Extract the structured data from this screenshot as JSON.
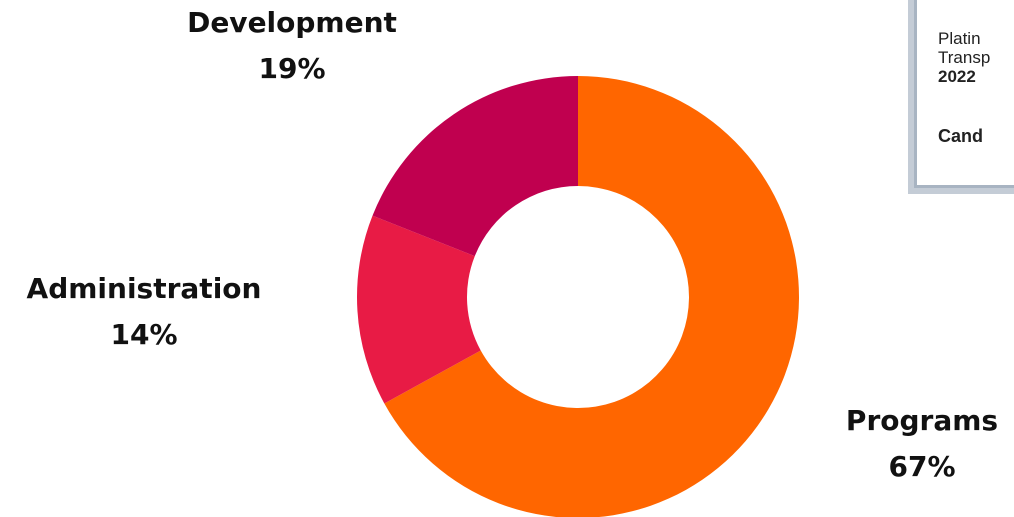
{
  "chart_data": {
    "type": "pie",
    "donut": true,
    "categories": [
      "Programs",
      "Administration",
      "Development"
    ],
    "values": [
      67,
      14,
      19
    ],
    "value_labels": [
      "67%",
      "14%",
      "19%"
    ],
    "colors": [
      "#ff6600",
      "#e81b45",
      "#c0004f"
    ],
    "title": "",
    "legend": "none"
  },
  "badge": {
    "line1": "Platin",
    "line2": "Transp",
    "year": "2022",
    "brand": "Cand",
    "colors": {
      "frame": "#c4ccd6",
      "border": "#a8b4c2"
    }
  }
}
